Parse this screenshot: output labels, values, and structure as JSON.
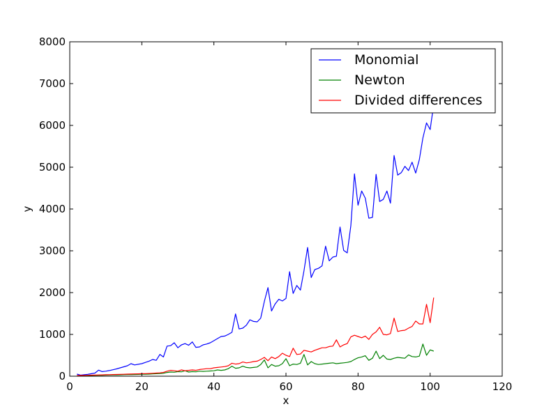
{
  "chart_data": {
    "type": "line",
    "title": "",
    "xlabel": "x",
    "ylabel": "y",
    "xlim": [
      0,
      120
    ],
    "ylim": [
      0,
      8000
    ],
    "xticks": [
      "0",
      "20",
      "40",
      "60",
      "80",
      "100",
      "120"
    ],
    "yticks": [
      "0",
      "1000",
      "2000",
      "3000",
      "4000",
      "5000",
      "6000",
      "7000",
      "8000"
    ],
    "grid": false,
    "legend_position": "top-right",
    "x": [
      2,
      3,
      4,
      5,
      6,
      7,
      8,
      9,
      10,
      11,
      12,
      13,
      14,
      15,
      16,
      17,
      18,
      19,
      20,
      21,
      22,
      23,
      24,
      25,
      26,
      27,
      28,
      29,
      30,
      31,
      32,
      33,
      34,
      35,
      36,
      37,
      38,
      39,
      40,
      41,
      42,
      43,
      44,
      45,
      46,
      47,
      48,
      49,
      50,
      51,
      52,
      53,
      54,
      55,
      56,
      57,
      58,
      59,
      60,
      61,
      62,
      63,
      64,
      65,
      66,
      67,
      68,
      69,
      70,
      71,
      72,
      73,
      74,
      75,
      76,
      77,
      78,
      79,
      80,
      81,
      82,
      83,
      84,
      85,
      86,
      87,
      88,
      89,
      90,
      91,
      92,
      93,
      94,
      95,
      96,
      97,
      98,
      99,
      100,
      101
    ],
    "series": [
      {
        "name": "Monomial",
        "color": "#0000ff",
        "values": [
          50,
          25,
          35,
          45,
          60,
          75,
          145,
          110,
          120,
          135,
          155,
          175,
          200,
          225,
          250,
          300,
          270,
          285,
          300,
          330,
          360,
          400,
          380,
          520,
          460,
          720,
          730,
          800,
          680,
          750,
          780,
          740,
          820,
          690,
          700,
          750,
          770,
          800,
          850,
          900,
          950,
          960,
          1000,
          1050,
          1490,
          1130,
          1150,
          1220,
          1350,
          1310,
          1300,
          1390,
          1790,
          2120,
          1560,
          1730,
          1840,
          1800,
          1860,
          2500,
          1980,
          2170,
          2060,
          2520,
          3080,
          2360,
          2550,
          2580,
          2640,
          3110,
          2760,
          2850,
          2870,
          3570,
          3010,
          2950,
          3600,
          4840,
          4090,
          4430,
          4260,
          3780,
          3800,
          4830,
          4180,
          4230,
          4430,
          4140,
          5280,
          4810,
          4870,
          5020,
          4920,
          5120,
          4860,
          5180,
          5700,
          6060,
          5900,
          6500
        ]
      },
      {
        "name": "Newton",
        "color": "#008000",
        "values": [
          10,
          12,
          14,
          16,
          18,
          20,
          22,
          24,
          26,
          28,
          30,
          32,
          34,
          36,
          38,
          40,
          42,
          44,
          46,
          48,
          50,
          55,
          60,
          65,
          70,
          90,
          100,
          95,
          110,
          105,
          130,
          100,
          110,
          105,
          120,
          115,
          120,
          125,
          130,
          150,
          140,
          150,
          180,
          240,
          190,
          200,
          240,
          210,
          200,
          210,
          220,
          280,
          390,
          200,
          280,
          240,
          250,
          300,
          420,
          250,
          290,
          280,
          310,
          520,
          270,
          350,
          300,
          280,
          290,
          300,
          310,
          320,
          300,
          310,
          320,
          330,
          350,
          400,
          440,
          460,
          490,
          380,
          430,
          600,
          420,
          500,
          410,
          400,
          430,
          450,
          440,
          430,
          510,
          470,
          460,
          480,
          770,
          500,
          630,
          600
        ]
      },
      {
        "name": "Divided differences",
        "color": "#ff0000",
        "values": [
          15,
          18,
          20,
          22,
          25,
          27,
          30,
          32,
          35,
          37,
          40,
          42,
          45,
          47,
          50,
          52,
          55,
          57,
          60,
          62,
          65,
          70,
          75,
          80,
          90,
          120,
          140,
          130,
          120,
          150,
          130,
          140,
          150,
          140,
          160,
          170,
          180,
          180,
          200,
          210,
          220,
          230,
          250,
          310,
          290,
          300,
          340,
          320,
          330,
          350,
          360,
          400,
          450,
          370,
          460,
          420,
          470,
          550,
          500,
          470,
          670,
          520,
          530,
          620,
          600,
          580,
          620,
          650,
          680,
          680,
          710,
          720,
          870,
          700,
          750,
          780,
          940,
          980,
          950,
          920,
          960,
          880,
          1000,
          1060,
          1170,
          1000,
          990,
          1020,
          1390,
          1070,
          1090,
          1100,
          1150,
          1190,
          1320,
          1250,
          1250,
          1720,
          1280,
          1880
        ]
      }
    ]
  },
  "legend": {
    "items": [
      {
        "label": "Monomial",
        "color": "#0000ff"
      },
      {
        "label": "Newton",
        "color": "#008000"
      },
      {
        "label": "Divided differences",
        "color": "#ff0000"
      }
    ]
  }
}
